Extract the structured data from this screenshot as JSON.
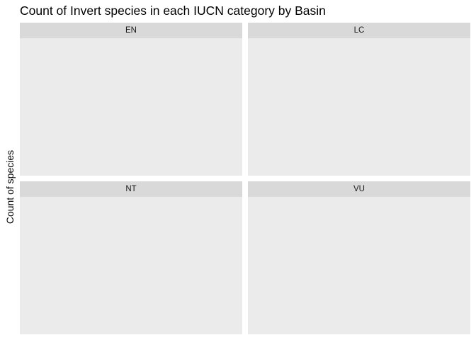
{
  "chart_data": {
    "type": "bar",
    "title": "Count of Invert species in each IUCN category by Basin",
    "xlabel": "",
    "ylabel": "Count of species",
    "facets": [
      "EN",
      "LC",
      "NT",
      "VU"
    ],
    "categories": [],
    "values": [],
    "grid": false,
    "legend": "none"
  },
  "colors": {
    "strip_background": "#d9d9d9",
    "panel_background": "#ebebeb",
    "strip_text": "#1a1a1a"
  }
}
